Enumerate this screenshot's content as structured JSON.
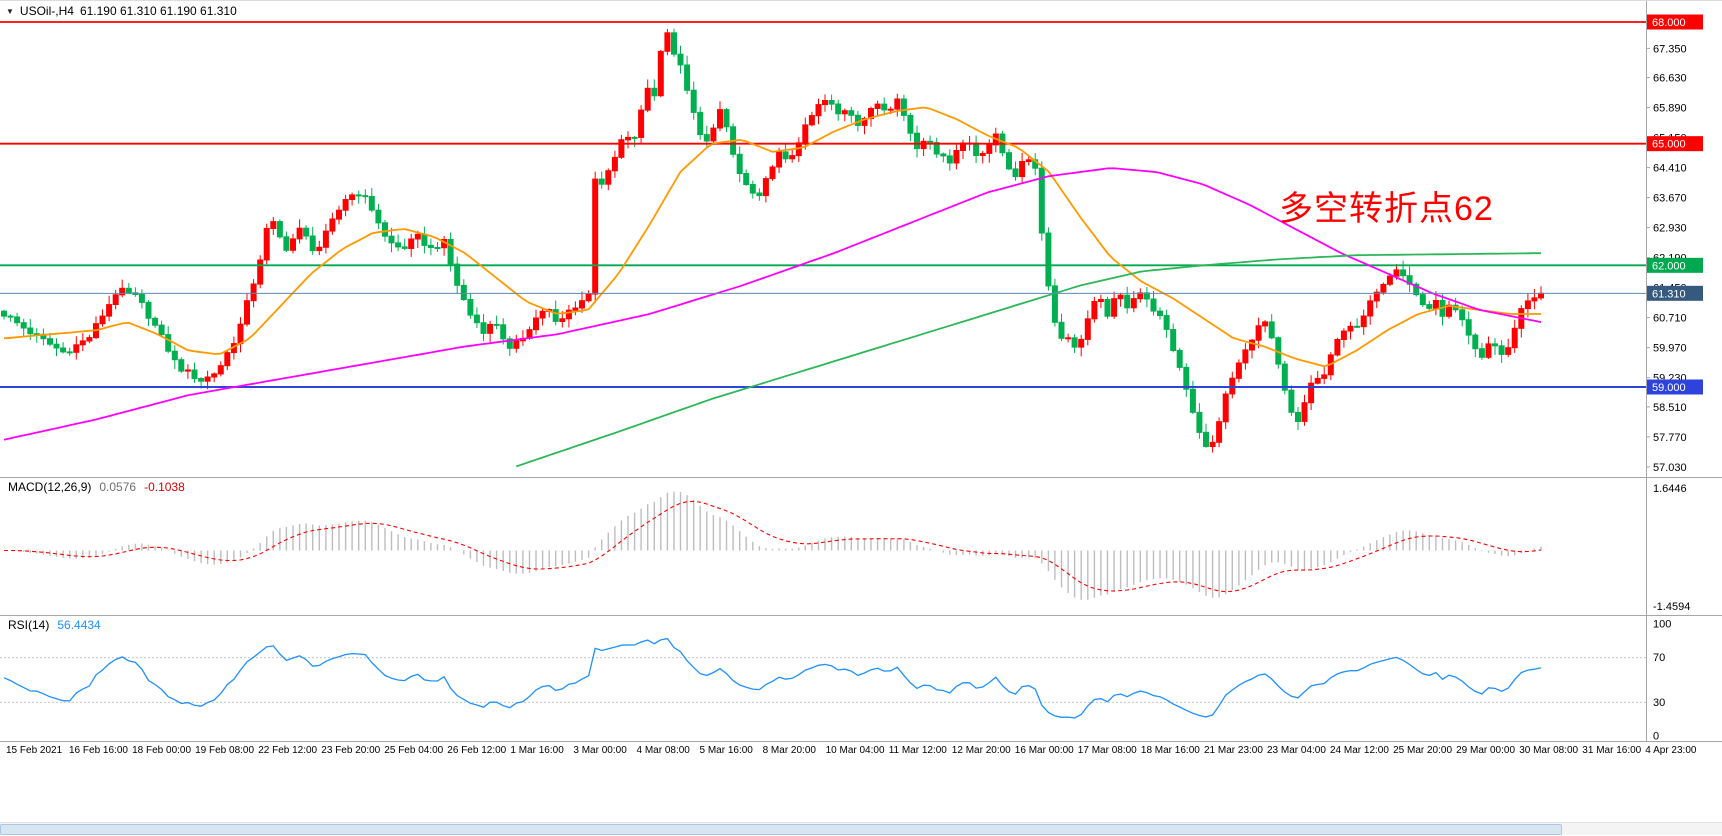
{
  "window": {
    "title_marker": "▼"
  },
  "header": {
    "symbol_period": "USOil-,H4",
    "ohlc": "61.190 61.310 61.190 61.310"
  },
  "annotation": {
    "text": "多空转折点62",
    "color": "#FF0000"
  },
  "price_axis": {
    "ticks": [
      "68.000",
      "67.350",
      "66.630",
      "65.890",
      "65.150",
      "64.410",
      "63.670",
      "62.930",
      "62.190",
      "61.450",
      "60.710",
      "59.970",
      "59.230",
      "58.510",
      "57.770",
      "57.030"
    ]
  },
  "time_axis": {
    "labels": [
      "15 Feb 2021",
      "16 Feb 16:00",
      "18 Feb 00:00",
      "19 Feb 08:00",
      "22 Feb 12:00",
      "23 Feb 20:00",
      "25 Feb 04:00",
      "26 Feb 12:00",
      "1 Mar 16:00",
      "3 Mar 00:00",
      "4 Mar 08:00",
      "5 Mar 16:00",
      "8 Mar 20:00",
      "10 Mar 04:00",
      "11 Mar 12:00",
      "12 Mar 20:00",
      "16 Mar 00:00",
      "17 Mar 08:00",
      "18 Mar 16:00",
      "21 Mar 23:00",
      "23 Mar 04:00",
      "24 Mar 12:00",
      "25 Mar 20:00",
      "29 Mar 00:00",
      "30 Mar 08:00",
      "31 Mar 16:00",
      "4 Apr 23:00"
    ]
  },
  "indicators": {
    "macd": {
      "label": "MACD(12,26,9)",
      "value_main": "0.0576",
      "value_signal": "-0.1038",
      "axis_max": "1.6446",
      "axis_min": "-1.4594"
    },
    "rsi": {
      "label": "RSI(14)",
      "value": "56.4434",
      "axis_labels": [
        "100",
        "70",
        "30",
        "0"
      ],
      "levels": [
        70,
        30
      ]
    }
  },
  "colors": {
    "candle_up": "#FF0000",
    "candle_down": "#00B050",
    "bid_line": "#5B87B5",
    "bid_box": "#355A7E",
    "separator": "#A6A6A6",
    "macd_hist": "#BDBDBD",
    "macd_signal": "#FF0000",
    "rsi_line": "#1E90FF",
    "rsi_level": "#C8C8C8"
  },
  "chart_data": [
    {
      "type": "candlestick",
      "title": "USOil-,H4",
      "bars": 235,
      "y_range": [
        57.03,
        68.0
      ],
      "current_price": 61.31,
      "current_price_label": "61.310",
      "horizontal_lines": [
        {
          "name": "resistance-line-68",
          "price": 68.0,
          "label": "68.000",
          "color": "#FF0000",
          "width": 1.8
        },
        {
          "name": "resistance-line-65",
          "price": 65.0,
          "label": "65.000",
          "color": "#FF0000",
          "width": 1.8
        },
        {
          "name": "pivot-line-62",
          "price": 62.0,
          "label": "62.000",
          "color": "#00A94F",
          "width": 1.8
        },
        {
          "name": "support-line-59",
          "price": 59.0,
          "label": "59.000",
          "color": "#2E43DC",
          "width": 2
        }
      ],
      "close_waypoints": [
        [
          0.0,
          60.8
        ],
        [
          0.019,
          60.3
        ],
        [
          0.039,
          59.85
        ],
        [
          0.055,
          60.2
        ],
        [
          0.074,
          61.4
        ],
        [
          0.087,
          61.2
        ],
        [
          0.1,
          60.4
        ],
        [
          0.113,
          59.5
        ],
        [
          0.129,
          59.15
        ],
        [
          0.139,
          59.4
        ],
        [
          0.152,
          60.3
        ],
        [
          0.165,
          61.9
        ],
        [
          0.173,
          63.2
        ],
        [
          0.183,
          62.4
        ],
        [
          0.193,
          62.9
        ],
        [
          0.203,
          62.3
        ],
        [
          0.214,
          63.1
        ],
        [
          0.223,
          63.7
        ],
        [
          0.232,
          63.8
        ],
        [
          0.241,
          63.3
        ],
        [
          0.249,
          62.6
        ],
        [
          0.259,
          62.4
        ],
        [
          0.269,
          62.7
        ],
        [
          0.278,
          62.4
        ],
        [
          0.286,
          62.6
        ],
        [
          0.294,
          61.6
        ],
        [
          0.303,
          60.8
        ],
        [
          0.312,
          60.4
        ],
        [
          0.32,
          60.6
        ],
        [
          0.329,
          59.9
        ],
        [
          0.337,
          60.2
        ],
        [
          0.344,
          60.6
        ],
        [
          0.353,
          61.0
        ],
        [
          0.36,
          60.5
        ],
        [
          0.368,
          60.9
        ],
        [
          0.375,
          61.1
        ],
        [
          0.381,
          61.3
        ],
        [
          0.384,
          64.2
        ],
        [
          0.39,
          64.0
        ],
        [
          0.396,
          64.5
        ],
        [
          0.403,
          65.2
        ],
        [
          0.409,
          65.0
        ],
        [
          0.414,
          65.7
        ],
        [
          0.419,
          66.4
        ],
        [
          0.423,
          66.2
        ],
        [
          0.427,
          67.2
        ],
        [
          0.431,
          67.9
        ],
        [
          0.435,
          67.3
        ],
        [
          0.44,
          66.9
        ],
        [
          0.445,
          66.3
        ],
        [
          0.45,
          65.5
        ],
        [
          0.456,
          64.9
        ],
        [
          0.463,
          65.6
        ],
        [
          0.467,
          65.9
        ],
        [
          0.472,
          65.0
        ],
        [
          0.478,
          64.3
        ],
        [
          0.484,
          63.9
        ],
        [
          0.491,
          63.6
        ],
        [
          0.497,
          64.2
        ],
        [
          0.503,
          64.8
        ],
        [
          0.51,
          64.5
        ],
        [
          0.516,
          65.0
        ],
        [
          0.523,
          65.5
        ],
        [
          0.529,
          65.9
        ],
        [
          0.536,
          66.1
        ],
        [
          0.542,
          65.7
        ],
        [
          0.549,
          65.9
        ],
        [
          0.555,
          65.5
        ],
        [
          0.562,
          65.7
        ],
        [
          0.568,
          66.0
        ],
        [
          0.575,
          65.8
        ],
        [
          0.581,
          66.2
        ],
        [
          0.588,
          65.4
        ],
        [
          0.594,
          64.9
        ],
        [
          0.601,
          65.2
        ],
        [
          0.607,
          64.8
        ],
        [
          0.614,
          64.5
        ],
        [
          0.62,
          64.9
        ],
        [
          0.627,
          65.1
        ],
        [
          0.633,
          64.7
        ],
        [
          0.639,
          64.9
        ],
        [
          0.646,
          65.2
        ],
        [
          0.652,
          64.5
        ],
        [
          0.659,
          64.2
        ],
        [
          0.665,
          64.7
        ],
        [
          0.672,
          64.4
        ],
        [
          0.676,
          62.4
        ],
        [
          0.681,
          61.2
        ],
        [
          0.686,
          60.1
        ],
        [
          0.691,
          60.4
        ],
        [
          0.696,
          59.9
        ],
        [
          0.702,
          60.3
        ],
        [
          0.707,
          60.9
        ],
        [
          0.712,
          61.2
        ],
        [
          0.718,
          60.8
        ],
        [
          0.725,
          61.3
        ],
        [
          0.731,
          61.0
        ],
        [
          0.738,
          61.4
        ],
        [
          0.744,
          61.1
        ],
        [
          0.751,
          60.8
        ],
        [
          0.757,
          60.3
        ],
        [
          0.764,
          59.6
        ],
        [
          0.77,
          58.9
        ],
        [
          0.775,
          58.2
        ],
        [
          0.781,
          57.6
        ],
        [
          0.784,
          57.3
        ],
        [
          0.79,
          58.1
        ],
        [
          0.795,
          58.8
        ],
        [
          0.801,
          59.4
        ],
        [
          0.808,
          59.9
        ],
        [
          0.814,
          60.4
        ],
        [
          0.821,
          60.6
        ],
        [
          0.826,
          60.0
        ],
        [
          0.831,
          59.2
        ],
        [
          0.836,
          58.5
        ],
        [
          0.841,
          58.0
        ],
        [
          0.847,
          58.7
        ],
        [
          0.852,
          59.3
        ],
        [
          0.857,
          59.1
        ],
        [
          0.862,
          59.6
        ],
        [
          0.867,
          60.1
        ],
        [
          0.874,
          60.6
        ],
        [
          0.88,
          60.4
        ],
        [
          0.887,
          60.9
        ],
        [
          0.893,
          61.4
        ],
        [
          0.9,
          61.7
        ],
        [
          0.905,
          62.0
        ],
        [
          0.91,
          61.8
        ],
        [
          0.915,
          61.5
        ],
        [
          0.92,
          61.2
        ],
        [
          0.926,
          60.9
        ],
        [
          0.931,
          61.1
        ],
        [
          0.936,
          60.8
        ],
        [
          0.941,
          61.0
        ],
        [
          0.946,
          60.8
        ],
        [
          0.951,
          60.4
        ],
        [
          0.957,
          59.9
        ],
        [
          0.962,
          59.7
        ],
        [
          0.967,
          60.2
        ],
        [
          0.972,
          59.9
        ],
        [
          0.977,
          59.7
        ],
        [
          0.982,
          60.4
        ],
        [
          0.988,
          61.0
        ],
        [
          0.993,
          61.2
        ],
        [
          1.0,
          61.31
        ]
      ],
      "moving_averages": [
        {
          "name": "ma-fast-orange",
          "color": "#FF9900",
          "points": [
            [
              0,
              60.2
            ],
            [
              0.03,
              60.3
            ],
            [
              0.06,
              60.4
            ],
            [
              0.08,
              60.6
            ],
            [
              0.1,
              60.3
            ],
            [
              0.12,
              59.9
            ],
            [
              0.14,
              59.8
            ],
            [
              0.16,
              60.2
            ],
            [
              0.18,
              61.0
            ],
            [
              0.2,
              61.8
            ],
            [
              0.22,
              62.4
            ],
            [
              0.24,
              62.8
            ],
            [
              0.26,
              62.9
            ],
            [
              0.28,
              62.7
            ],
            [
              0.3,
              62.3
            ],
            [
              0.32,
              61.7
            ],
            [
              0.34,
              61.1
            ],
            [
              0.36,
              60.8
            ],
            [
              0.38,
              60.9
            ],
            [
              0.4,
              61.8
            ],
            [
              0.42,
              63.0
            ],
            [
              0.44,
              64.3
            ],
            [
              0.46,
              65.0
            ],
            [
              0.48,
              65.1
            ],
            [
              0.5,
              64.8
            ],
            [
              0.52,
              64.9
            ],
            [
              0.54,
              65.3
            ],
            [
              0.56,
              65.6
            ],
            [
              0.58,
              65.8
            ],
            [
              0.6,
              65.9
            ],
            [
              0.62,
              65.6
            ],
            [
              0.64,
              65.2
            ],
            [
              0.66,
              64.9
            ],
            [
              0.68,
              64.3
            ],
            [
              0.7,
              63.2
            ],
            [
              0.72,
              62.2
            ],
            [
              0.74,
              61.6
            ],
            [
              0.76,
              61.2
            ],
            [
              0.78,
              60.7
            ],
            [
              0.8,
              60.2
            ],
            [
              0.82,
              60.0
            ],
            [
              0.84,
              59.7
            ],
            [
              0.86,
              59.5
            ],
            [
              0.88,
              59.9
            ],
            [
              0.9,
              60.4
            ],
            [
              0.92,
              60.8
            ],
            [
              0.94,
              61.0
            ],
            [
              0.96,
              60.9
            ],
            [
              0.98,
              60.8
            ],
            [
              1,
              60.8
            ]
          ]
        },
        {
          "name": "ma-mid-magenta",
          "color": "#FF00FF",
          "points": [
            [
              0,
              57.7
            ],
            [
              0.06,
              58.2
            ],
            [
              0.12,
              58.8
            ],
            [
              0.18,
              59.2
            ],
            [
              0.24,
              59.6
            ],
            [
              0.3,
              60.0
            ],
            [
              0.36,
              60.3
            ],
            [
              0.42,
              60.8
            ],
            [
              0.48,
              61.5
            ],
            [
              0.54,
              62.3
            ],
            [
              0.6,
              63.2
            ],
            [
              0.64,
              63.8
            ],
            [
              0.68,
              64.2
            ],
            [
              0.72,
              64.4
            ],
            [
              0.75,
              64.3
            ],
            [
              0.78,
              64.0
            ],
            [
              0.81,
              63.5
            ],
            [
              0.84,
              62.9
            ],
            [
              0.87,
              62.3
            ],
            [
              0.9,
              61.8
            ],
            [
              0.93,
              61.3
            ],
            [
              0.96,
              60.9
            ],
            [
              1,
              60.6
            ]
          ]
        },
        {
          "name": "ma-slow-green",
          "color": "#2DB757",
          "points": [
            [
              0.33,
              57.0
            ],
            [
              0.4,
              57.9
            ],
            [
              0.46,
              58.7
            ],
            [
              0.52,
              59.4
            ],
            [
              0.58,
              60.1
            ],
            [
              0.64,
              60.8
            ],
            [
              0.7,
              61.5
            ],
            [
              0.74,
              61.85
            ],
            [
              0.78,
              62.0
            ],
            [
              0.83,
              62.15
            ],
            [
              0.88,
              62.25
            ],
            [
              1,
              62.3
            ]
          ]
        }
      ]
    },
    {
      "type": "histogram+line",
      "name": "MACD(12,26,9)",
      "current_main": 0.0576,
      "current_signal": -0.1038,
      "axis_range": [
        -1.4594,
        1.6446
      ],
      "computed_from_closes": true
    },
    {
      "type": "line",
      "name": "RSI(14)",
      "current": 56.4434,
      "range": [
        0,
        100
      ],
      "levels": [
        70,
        30
      ],
      "computed_from_closes": true
    }
  ]
}
